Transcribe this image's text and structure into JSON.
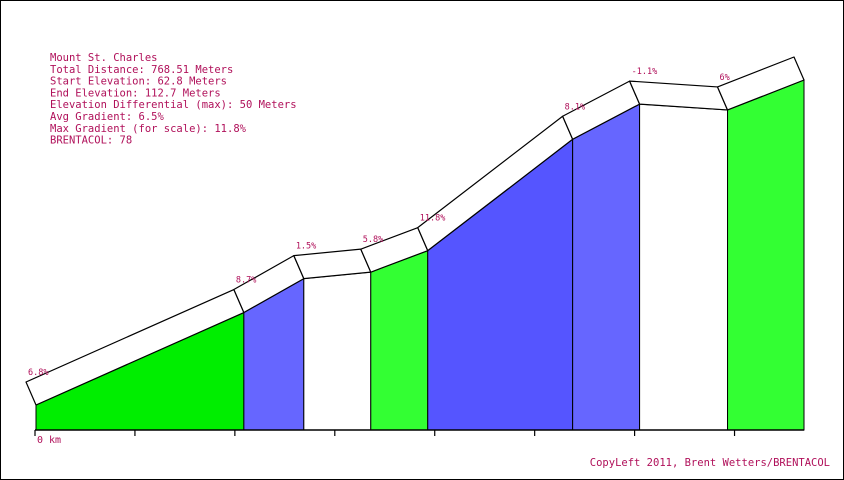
{
  "info": {
    "lines": [
      "Mount St. Charles",
      "Total Distance: 768.51 Meters",
      "Start Elevation: 62.8 Meters",
      "End Elevation: 112.7 Meters",
      "Elevation Differential (max): 50 Meters",
      "Avg Gradient: 6.5%",
      "Max Gradient (for scale): 11.8%",
      "BRENTACOL: 78"
    ]
  },
  "credit": "CopyLeft 2011, Brent Wetters/BRENTACOL",
  "chart_data": {
    "type": "area",
    "title": "Mount St. Charles",
    "x_unit": "m",
    "xlim": [
      0,
      768.51
    ],
    "ylim": [
      62.8,
      112.7
    ],
    "x_tick_labels": [
      {
        "x": 0,
        "label": "0 km"
      }
    ],
    "x_ticks": [
      0,
      100,
      200,
      300,
      400,
      500,
      600,
      700
    ],
    "segments": [
      {
        "start": 0,
        "end": 208,
        "start_elev": 62.8,
        "end_elev": 77.0,
        "gradient": 6.8,
        "label": "6.8%",
        "color": "#00ee00"
      },
      {
        "start": 208,
        "end": 268,
        "start_elev": 77.0,
        "end_elev": 82.2,
        "gradient": 8.7,
        "label": "8.7%",
        "color": "#6666ff"
      },
      {
        "start": 268,
        "end": 335,
        "start_elev": 82.2,
        "end_elev": 83.2,
        "gradient": 1.5,
        "label": "1.5%",
        "color": "#ffffff"
      },
      {
        "start": 335,
        "end": 392,
        "start_elev": 83.2,
        "end_elev": 86.5,
        "gradient": 5.8,
        "label": "5.8%",
        "color": "#33ff33"
      },
      {
        "start": 392,
        "end": 537,
        "start_elev": 86.5,
        "end_elev": 103.6,
        "gradient": 11.8,
        "label": "11.8%",
        "color": "#5555ff"
      },
      {
        "start": 537,
        "end": 604,
        "start_elev": 103.6,
        "end_elev": 109.0,
        "gradient": 8.1,
        "label": "8.1%",
        "color": "#6666ff"
      },
      {
        "start": 604,
        "end": 692,
        "start_elev": 109.0,
        "end_elev": 108.1,
        "gradient": -1.1,
        "label": "-1.1%",
        "color": "#ffffff"
      },
      {
        "start": 692,
        "end": 768.51,
        "start_elev": 108.1,
        "end_elev": 112.7,
        "gradient": 6.0,
        "label": "6%",
        "color": "#33ff33"
      }
    ]
  }
}
